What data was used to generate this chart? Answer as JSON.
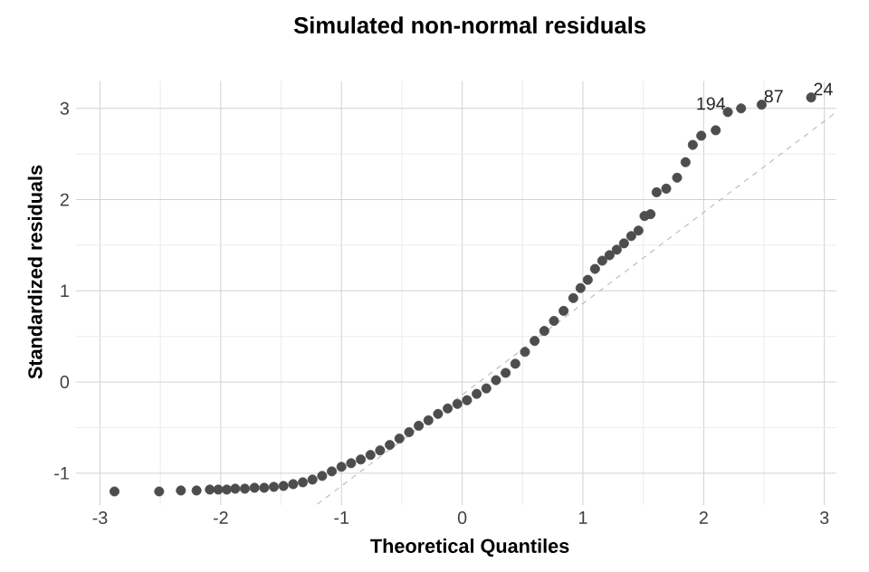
{
  "chart_data": {
    "type": "scatter",
    "title": "Simulated non-normal residuals",
    "xlabel": "Theoretical Quantiles",
    "ylabel": "Standardized residuals",
    "xlim": [
      -3.2,
      3.1
    ],
    "ylim": [
      -1.35,
      3.3
    ],
    "xticks": [
      -3,
      -2,
      -1,
      0,
      1,
      2,
      3
    ],
    "yticks": [
      -1,
      0,
      1,
      2,
      3
    ],
    "grid": true,
    "series": [
      {
        "type": "scatter",
        "marker": "circle",
        "color": "#4d4d4d",
        "x": [
          -2.88,
          -2.51,
          -2.33,
          -2.2,
          -2.09,
          -2.02,
          -1.95,
          -1.88,
          -1.8,
          -1.72,
          -1.64,
          -1.56,
          -1.48,
          -1.4,
          -1.32,
          -1.24,
          -1.16,
          -1.08,
          -1.0,
          -0.92,
          -0.84,
          -0.76,
          -0.68,
          -0.6,
          -0.52,
          -0.44,
          -0.36,
          -0.28,
          -0.2,
          -0.12,
          -0.04,
          0.04,
          0.12,
          0.2,
          0.28,
          0.36,
          0.44,
          0.52,
          0.6,
          0.68,
          0.76,
          0.84,
          0.92,
          0.98,
          1.04,
          1.1,
          1.16,
          1.22,
          1.28,
          1.34,
          1.4,
          1.46,
          1.51,
          1.56,
          1.61,
          1.69,
          1.78,
          1.85,
          1.91,
          1.98,
          2.1,
          2.2,
          2.31,
          2.48,
          2.89
        ],
        "values": [
          -1.2,
          -1.2,
          -1.19,
          -1.19,
          -1.18,
          -1.18,
          -1.18,
          -1.17,
          -1.17,
          -1.16,
          -1.16,
          -1.15,
          -1.14,
          -1.12,
          -1.1,
          -1.07,
          -1.03,
          -0.98,
          -0.93,
          -0.89,
          -0.85,
          -0.8,
          -0.75,
          -0.69,
          -0.62,
          -0.55,
          -0.48,
          -0.42,
          -0.35,
          -0.29,
          -0.24,
          -0.2,
          -0.13,
          -0.07,
          0.02,
          0.1,
          0.2,
          0.33,
          0.45,
          0.56,
          0.67,
          0.78,
          0.92,
          1.03,
          1.12,
          1.24,
          1.33,
          1.39,
          1.45,
          1.52,
          1.6,
          1.66,
          1.82,
          1.84,
          2.08,
          2.12,
          2.24,
          2.41,
          2.6,
          2.7,
          2.76,
          2.96,
          3.0,
          3.04,
          3.12
        ]
      },
      {
        "type": "line",
        "color": "#bdbdbd",
        "line_style": "dashed",
        "x": [
          -1.2,
          3.1
        ],
        "values": [
          -1.34,
          2.96
        ]
      }
    ],
    "annotations": [
      {
        "text": "194",
        "x": 2.2,
        "y": 2.96
      },
      {
        "text": "87",
        "x": 2.48,
        "y": 3.04
      },
      {
        "text": "24",
        "x": 2.89,
        "y": 3.12
      }
    ]
  }
}
